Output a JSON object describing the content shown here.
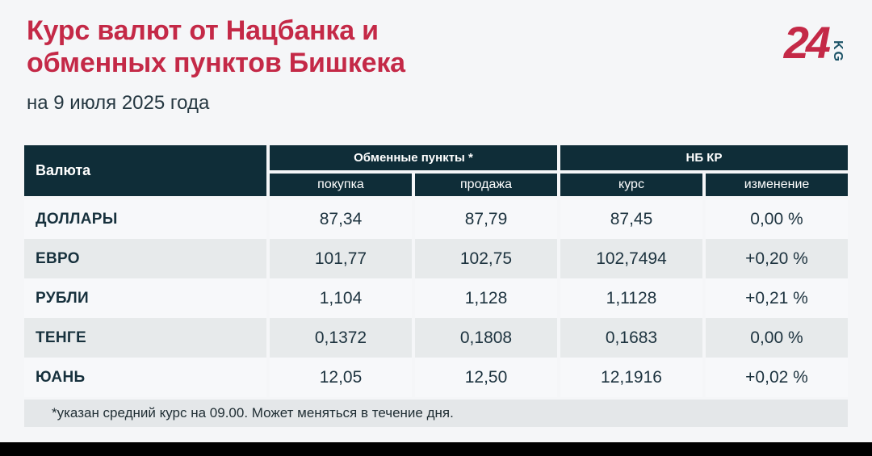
{
  "header": {
    "title": "Курс валют от Нацбанка и\nобменных пунктов Бишкека",
    "date": "на 9 июля 2025 года",
    "logo": {
      "number": "24",
      "suffix": "KG"
    }
  },
  "colors": {
    "accent_red": "#c42947",
    "table_header_dark": "#0f2d38",
    "row_alt_gray": "#e7eaeb",
    "page_background": "#f5f6f8",
    "logo_teal": "#1d5468"
  },
  "chart_data": {
    "type": "table",
    "title": "Курс валют от Нацбанка и обменных пунктов Бишкека",
    "subtitle": "на 9 июля 2025 года",
    "header": {
      "currency": "Валюта",
      "groups": [
        {
          "label": "Обменные пункты *",
          "sub": [
            "покупка",
            "продажа"
          ]
        },
        {
          "label": "НБ КР",
          "sub": [
            "курс",
            "изменение"
          ]
        }
      ]
    },
    "rows": [
      [
        "ДОЛЛАРЫ",
        "87,34",
        "87,79",
        "87,45",
        "0,00 %"
      ],
      [
        "ЕВРО",
        "101,77",
        "102,75",
        "102,7494",
        "+0,20 %"
      ],
      [
        "РУБЛИ",
        "1,104",
        "1,128",
        "1,1128",
        "+0,21 %"
      ],
      [
        "ТЕНГЕ",
        "0,1372",
        "0,1808",
        "0,1683",
        "0,00 %"
      ],
      [
        "ЮАНЬ",
        "12,05",
        "12,50",
        "12,1916",
        "+0,02 %"
      ]
    ],
    "footnote": "*указан средний курс на 09.00. Может меняться в течение дня."
  }
}
